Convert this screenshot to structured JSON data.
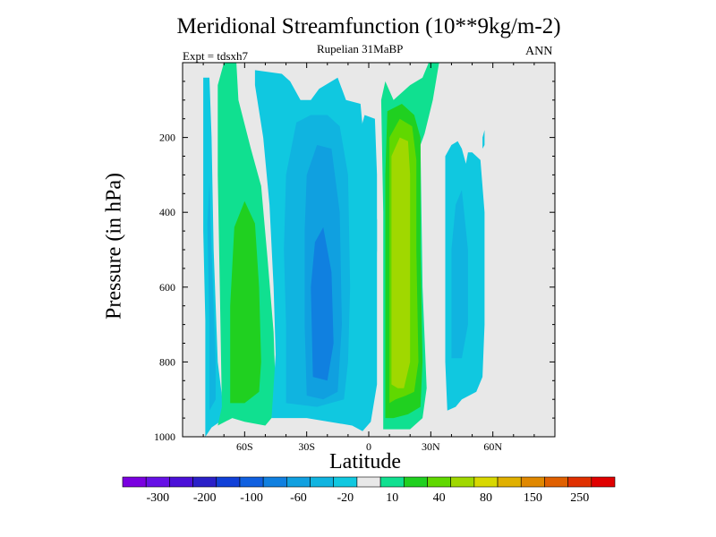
{
  "chart_data": {
    "type": "contour",
    "title": "Meridional Streamfunction (10**9kg/m-2)",
    "subtitle": "Rupelian  31MaBP",
    "experiment": "Expt = tdsxh7",
    "season": "ANN",
    "xlabel": "Latitude",
    "ylabel": "Pressure (in hPa)",
    "xlim": [
      -90,
      90
    ],
    "ylim": [
      1000,
      0
    ],
    "x_ticks": [
      -60,
      -30,
      0,
      30,
      60
    ],
    "x_tick_labels": [
      "60S",
      "30S",
      "0",
      "30N",
      "60N"
    ],
    "y_ticks": [
      200,
      400,
      600,
      800,
      1000
    ],
    "y_tick_labels": [
      "200",
      "400",
      "600",
      "800",
      "1000"
    ],
    "background_color": "#e8e8e8",
    "colorbar": {
      "colors": [
        "#7a00e0",
        "#6610e6",
        "#4b10d8",
        "#2a20c8",
        "#1040d8",
        "#1060e0",
        "#1080e0",
        "#10a0e0",
        "#10b4e0",
        "#10c8e0",
        "#e8e8e8",
        "#10e090",
        "#20d020",
        "#60d800",
        "#a0d800",
        "#d8d800",
        "#e0b000",
        "#e08800",
        "#e06000",
        "#e03000",
        "#e00000"
      ],
      "label_values": [
        "-300",
        "-200",
        "-100",
        "-60",
        "-20",
        "10",
        "40",
        "80",
        "150",
        "250"
      ]
    },
    "regions": [
      {
        "level": "-20",
        "color": "#10c8e0",
        "points": [
          [
            -79,
            1000
          ],
          [
            -79,
            690
          ],
          [
            -80,
            450
          ],
          [
            -80,
            40
          ],
          [
            -77,
            40
          ],
          [
            -76,
            200
          ],
          [
            -75,
            500
          ],
          [
            -73,
            800
          ],
          [
            -70,
            935
          ],
          [
            -72,
            960
          ],
          [
            -76,
            975
          ]
        ]
      },
      {
        "level": "-40",
        "color": "#10b4e0",
        "points": [
          [
            -77,
            930
          ],
          [
            -77,
            700
          ],
          [
            -78,
            430
          ],
          [
            -77,
            320
          ],
          [
            -76,
            500
          ],
          [
            -74,
            800
          ],
          [
            -74,
            900
          ]
        ]
      },
      {
        "level": "10",
        "color": "#10e090",
        "points": [
          [
            -73,
            970
          ],
          [
            -71,
            920
          ],
          [
            -72,
            600
          ],
          [
            -73,
            300
          ],
          [
            -73,
            60
          ],
          [
            -70,
            0
          ],
          [
            -64,
            0
          ],
          [
            -63,
            100
          ],
          [
            -57,
            230
          ],
          [
            -52,
            330
          ],
          [
            -49,
            520
          ],
          [
            -46,
            720
          ],
          [
            -45,
            880
          ],
          [
            -47,
            950
          ],
          [
            -50,
            970
          ],
          [
            -60,
            960
          ],
          [
            -66,
            950
          ]
        ]
      },
      {
        "level": "40",
        "color": "#20d020",
        "points": [
          [
            -67,
            910
          ],
          [
            -67,
            650
          ],
          [
            -65,
            440
          ],
          [
            -60,
            370
          ],
          [
            -55,
            430
          ],
          [
            -53,
            600
          ],
          [
            -52,
            800
          ],
          [
            -53,
            880
          ],
          [
            -60,
            910
          ]
        ]
      },
      {
        "level": "-20",
        "color": "#10c8e0",
        "points": [
          [
            -47,
            950
          ],
          [
            -45,
            780
          ],
          [
            -46,
            600
          ],
          [
            -48,
            380
          ],
          [
            -51,
            200
          ],
          [
            -55,
            60
          ],
          [
            -55,
            20
          ],
          [
            -42,
            30
          ],
          [
            -38,
            50
          ],
          [
            -33,
            100
          ],
          [
            -28,
            100
          ],
          [
            -24,
            70
          ],
          [
            -15,
            40
          ],
          [
            -11,
            100
          ],
          [
            -4,
            110
          ],
          [
            -3,
            170
          ],
          [
            -1,
            230
          ],
          [
            4,
            420
          ],
          [
            4,
            860
          ],
          [
            1,
            960
          ],
          [
            -3,
            985
          ],
          [
            -8,
            970
          ],
          [
            -30,
            950
          ]
        ]
      },
      {
        "level": "-40",
        "color": "#10b4e0",
        "points": [
          [
            -40,
            910
          ],
          [
            -40,
            700
          ],
          [
            -41,
            500
          ],
          [
            -40,
            300
          ],
          [
            -35,
            160
          ],
          [
            -28,
            140
          ],
          [
            -20,
            140
          ],
          [
            -14,
            170
          ],
          [
            -10,
            300
          ],
          [
            -9,
            600
          ],
          [
            -10,
            800
          ],
          [
            -12,
            900
          ],
          [
            -25,
            920
          ]
        ]
      },
      {
        "level": "-60",
        "color": "#10a0e0",
        "points": [
          [
            -30,
            890
          ],
          [
            -31,
            700
          ],
          [
            -31,
            450
          ],
          [
            -30,
            300
          ],
          [
            -25,
            220
          ],
          [
            -18,
            230
          ],
          [
            -14,
            400
          ],
          [
            -13,
            700
          ],
          [
            -15,
            880
          ],
          [
            -22,
            900
          ]
        ]
      },
      {
        "level": "-80",
        "color": "#1080e0",
        "points": [
          [
            -27,
            840
          ],
          [
            -28,
            600
          ],
          [
            -26,
            480
          ],
          [
            -22,
            440
          ],
          [
            -18,
            560
          ],
          [
            -17,
            750
          ],
          [
            -20,
            850
          ]
        ]
      },
      {
        "level": "-20",
        "color": "#10c8e0",
        "points": [
          [
            -4,
            180
          ],
          [
            -2,
            140
          ],
          [
            3,
            150
          ],
          [
            4,
            300
          ],
          [
            4,
            500
          ],
          [
            2,
            700
          ],
          [
            0,
            740
          ],
          [
            -2,
            600
          ],
          [
            -3,
            400
          ]
        ]
      },
      {
        "level": "10",
        "color": "#10e090",
        "points": [
          [
            7,
            980
          ],
          [
            7,
            700
          ],
          [
            7,
            400
          ],
          [
            6,
            100
          ],
          [
            8,
            50
          ],
          [
            12,
            100
          ],
          [
            16,
            80
          ],
          [
            20,
            60
          ],
          [
            26,
            40
          ],
          [
            29,
            0
          ],
          [
            34,
            0
          ],
          [
            31,
            100
          ],
          [
            27,
            190
          ],
          [
            25,
            220
          ],
          [
            26,
            600
          ],
          [
            28,
            870
          ],
          [
            26,
            950
          ],
          [
            20,
            980
          ]
        ]
      },
      {
        "level": "40",
        "color": "#20d020",
        "points": [
          [
            8,
            950
          ],
          [
            8,
            650
          ],
          [
            8,
            300
          ],
          [
            9,
            130
          ],
          [
            16,
            110
          ],
          [
            22,
            140
          ],
          [
            25,
            200
          ],
          [
            25,
            500
          ],
          [
            26,
            800
          ],
          [
            25,
            920
          ],
          [
            19,
            940
          ],
          [
            12,
            950
          ]
        ]
      },
      {
        "level": "60",
        "color": "#60d800",
        "points": [
          [
            10,
            910
          ],
          [
            10,
            500
          ],
          [
            10,
            200
          ],
          [
            15,
            150
          ],
          [
            21,
            170
          ],
          [
            23,
            260
          ],
          [
            23,
            500
          ],
          [
            24,
            800
          ],
          [
            22,
            880
          ],
          [
            18,
            890
          ],
          [
            13,
            900
          ]
        ]
      },
      {
        "level": "80",
        "color": "#a0d800",
        "points": [
          [
            11,
            860
          ],
          [
            11,
            600
          ],
          [
            11,
            250
          ],
          [
            15,
            200
          ],
          [
            19,
            210
          ],
          [
            20,
            300
          ],
          [
            20,
            600
          ],
          [
            20,
            800
          ],
          [
            17,
            870
          ],
          [
            14,
            870
          ]
        ]
      },
      {
        "level": "-20",
        "color": "#10c8e0",
        "points": [
          [
            38,
            930
          ],
          [
            37,
            800
          ],
          [
            37,
            500
          ],
          [
            37,
            250
          ],
          [
            40,
            220
          ],
          [
            43,
            210
          ],
          [
            45,
            230
          ],
          [
            47,
            270
          ],
          [
            48,
            240
          ],
          [
            50,
            240
          ],
          [
            52,
            250
          ],
          [
            54,
            260
          ],
          [
            56,
            400
          ],
          [
            56,
            700
          ],
          [
            55,
            840
          ],
          [
            52,
            880
          ],
          [
            45,
            900
          ],
          [
            42,
            920
          ]
        ]
      },
      {
        "level": "-40",
        "color": "#10b4e0",
        "points": [
          [
            40,
            790
          ],
          [
            40,
            500
          ],
          [
            42,
            380
          ],
          [
            45,
            340
          ],
          [
            48,
            500
          ],
          [
            48,
            700
          ],
          [
            45,
            790
          ]
        ]
      },
      {
        "level": "-20",
        "color": "#10c8e0",
        "points": [
          [
            55,
            230
          ],
          [
            55,
            200
          ],
          [
            56,
            180
          ],
          [
            56,
            220
          ]
        ]
      }
    ]
  }
}
